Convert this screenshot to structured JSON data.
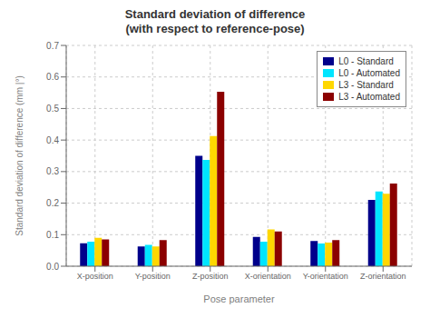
{
  "chart_data": {
    "type": "bar",
    "title": "Standard deviation of difference\n(with respect to reference-pose)",
    "xlabel": "Pose parameter",
    "ylabel": "Standard deviation of difference (mm |°)",
    "categories": [
      "X-position",
      "Y-position",
      "Z-position",
      "X-orientation",
      "Y-orientation",
      "Z-orientation"
    ],
    "series": [
      {
        "name": "L0 - Standard",
        "color": "#00008B",
        "values": [
          0.073,
          0.063,
          0.35,
          0.093,
          0.08,
          0.21
        ]
      },
      {
        "name": "L0 - Automated",
        "color": "#00E5FF",
        "values": [
          0.078,
          0.068,
          0.337,
          0.078,
          0.072,
          0.237
        ]
      },
      {
        "name": "L3 - Standard",
        "color": "#FFD700",
        "values": [
          0.09,
          0.063,
          0.413,
          0.117,
          0.075,
          0.23
        ]
      },
      {
        "name": "L3 - Automated",
        "color": "#8B0000",
        "values": [
          0.085,
          0.083,
          0.553,
          0.11,
          0.083,
          0.262
        ]
      }
    ],
    "ylim": [
      0,
      0.7
    ],
    "yticks": [
      {
        "value": 0,
        "label": "0.0"
      },
      0.1,
      0.2,
      0.3,
      0.4,
      0.5,
      0.6,
      0.7
    ],
    "grid": true,
    "legend": "upper right"
  }
}
